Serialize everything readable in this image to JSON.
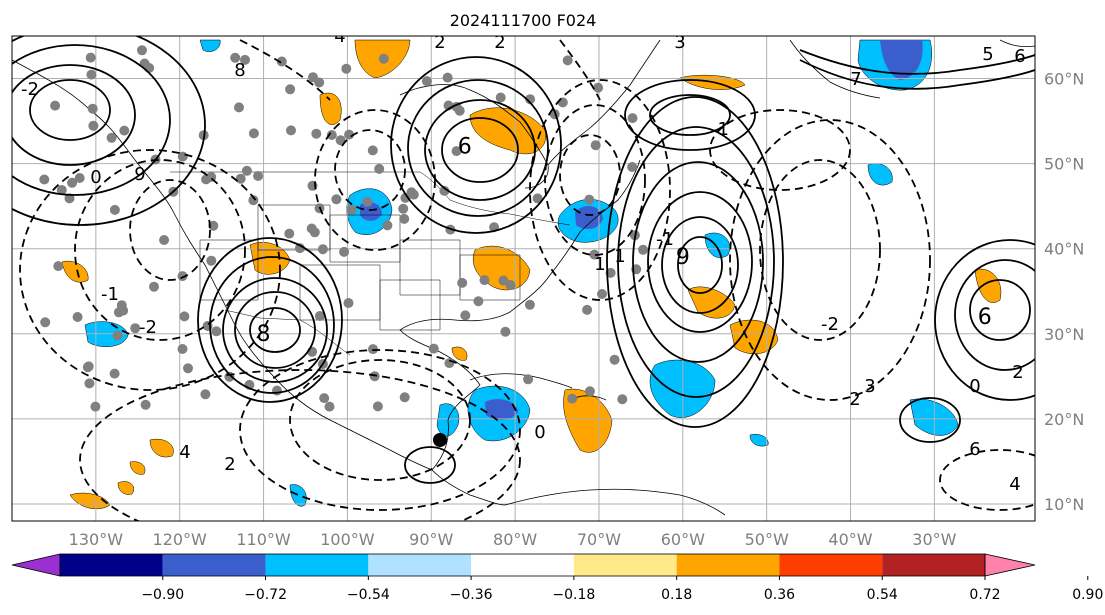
{
  "title": "2024111700 F024",
  "map": {
    "lon_range": [
      -140,
      -18
    ],
    "lat_range": [
      8,
      65
    ],
    "lon_labels": [
      "130°W",
      "120°W",
      "110°W",
      "100°W",
      "90°W",
      "80°W",
      "70°W",
      "60°W",
      "50°W",
      "40°W",
      "30°W"
    ],
    "lat_labels": [
      "60°N",
      "50°N",
      "40°N",
      "30°N",
      "20°N",
      "10°N"
    ],
    "grid": true,
    "contour_labels": [
      "2",
      "2",
      "3",
      "4",
      "5",
      "6",
      "7",
      "8",
      "9",
      "0",
      "1",
      "-1",
      "-2",
      "2",
      "3",
      "0",
      "2",
      "6",
      "4",
      "4",
      "2",
      "-1",
      "-2",
      "0",
      "1",
      "-1",
      "-2"
    ],
    "highs": [
      {
        "label": "8",
        "lon": -110,
        "lat": 30
      },
      {
        "label": "9",
        "lon": -60,
        "lat": 39
      },
      {
        "label": "6",
        "lon": -86,
        "lat": 52
      },
      {
        "label": "6",
        "lon": -24,
        "lat": 32
      }
    ]
  },
  "colorbar": {
    "ticks": [
      "−0.90",
      "−0.72",
      "−0.54",
      "−0.36",
      "−0.18",
      "0.18",
      "0.36",
      "0.54",
      "0.72",
      "0.90"
    ],
    "colors": [
      "#9b30d0",
      "#00008b",
      "#3a5fcd",
      "#00bfff",
      "#b0e2ff",
      "#ffffff",
      "#ffe98a",
      "#ffa500",
      "#ff3d00",
      "#b22222",
      "#ff82ab"
    ]
  },
  "colors": {
    "neg_strong": "#3a5fcd",
    "neg": "#00bfff",
    "neg_light": "#b0e2ff",
    "pos": "#ffa500",
    "pos_light": "#ffe98a",
    "grid": "#b0b0b0",
    "dots": "#808080"
  }
}
